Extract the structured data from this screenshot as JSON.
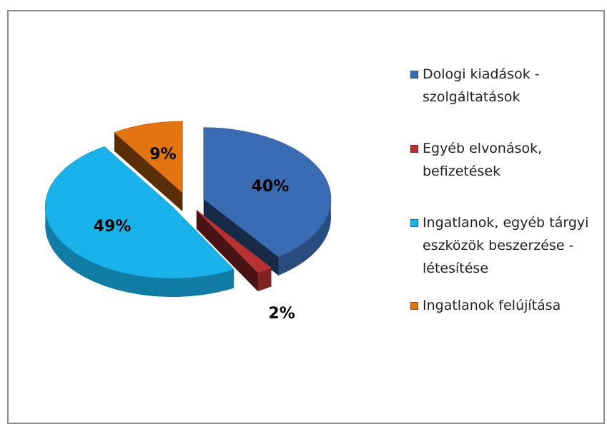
{
  "chart_data": {
    "type": "pie",
    "categories": [
      "Dologi kiadások - szolgáltatások",
      "Egyéb elvonások, befizetések",
      "Ingatlanok, egyéb tárgyi eszközök beszerzése - létesítése",
      "Ingatlanok felújítása"
    ],
    "values": [
      40,
      2,
      49,
      9
    ],
    "value_labels": [
      "40%",
      "2%",
      "49%",
      "9%"
    ],
    "colors": [
      "#3a6cb4",
      "#b83232",
      "#19b2ea",
      "#e27512"
    ],
    "legend": "right"
  }
}
